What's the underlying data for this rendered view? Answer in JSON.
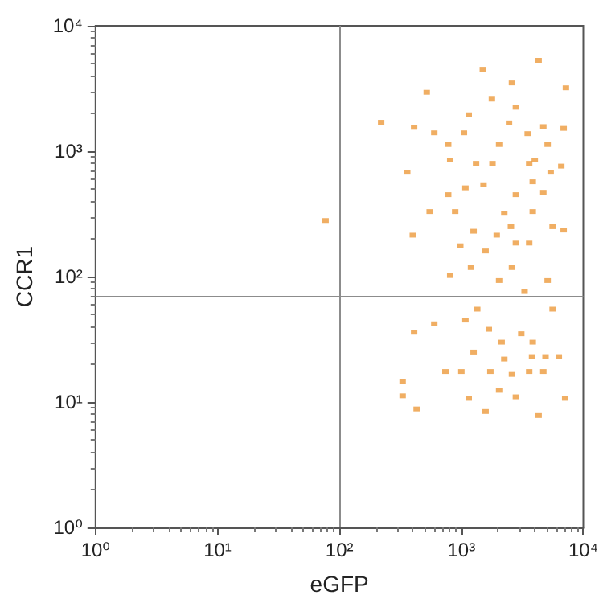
{
  "chart_data": {
    "type": "scatter",
    "xlabel": "eGFP",
    "ylabel": "CCR1",
    "log": "xy",
    "grid": false,
    "marker": "square",
    "xlim": [
      1,
      10000
    ],
    "ylim": [
      1,
      10000
    ],
    "xticks": [
      {
        "value": 1,
        "label": "10⁰"
      },
      {
        "value": 10,
        "label": "10¹"
      },
      {
        "value": 100,
        "label": "10²"
      },
      {
        "value": 1000,
        "label": "10³"
      },
      {
        "value": 10000,
        "label": "10⁴"
      }
    ],
    "yticks": [
      {
        "value": 1,
        "label": "10⁰"
      },
      {
        "value": 10,
        "label": "10¹"
      },
      {
        "value": 100,
        "label": "10²"
      },
      {
        "value": 1000,
        "label": "10³"
      },
      {
        "value": 10000,
        "label": "10⁴"
      }
    ],
    "ref_lines": [
      {
        "axis": "x",
        "value": 100,
        "color": "#8c8c8c"
      },
      {
        "axis": "y",
        "value": 70,
        "color": "#8c8c8c"
      }
    ],
    "series": [
      {
        "color": "#ec9a3c",
        "x": [
          77,
          220,
          360,
          600,
          1050,
          1320,
          1800,
          3600,
          2800,
          1260,
          2800,
          3600,
          2800,
          780,
          980,
          1950,
          6900,
          550,
          4700,
          4300,
          1500,
          2600,
          7200,
          520,
          4700,
          5100,
          780,
          5400,
          1520,
          2250,
          6900,
          410,
          2040,
          3300,
          5100,
          810,
          5600,
          1350,
          5600,
          600,
          1680,
          2140,
          3850,
          2250,
          3800,
          4900,
          6300,
          1000,
          1730,
          3600,
          4700,
          2800,
          1260,
          410,
          330,
          430,
          1580,
          4300,
          7100,
          740,
          1150,
          2600,
          2040,
          1080,
          3100,
          330,
          810,
          1150,
          1780,
          4000,
          2040,
          3850,
          890,
          1580,
          3850,
          6600,
          1080,
          2460,
          3500,
          2600,
          1200,
          400,
          2550
        ],
        "values": [
          280,
          1700,
          680,
          1400,
          1400,
          800,
          800,
          800,
          2240,
          230,
          185,
          185,
          450,
          450,
          176,
          214,
          235,
          330,
          470,
          5300,
          4500,
          3500,
          3200,
          2950,
          1570,
          1130,
          1130,
          680,
          540,
          320,
          1520,
          1550,
          93,
          76,
          93,
          102,
          250,
          55,
          55,
          42,
          38,
          30,
          30,
          22,
          23,
          23,
          23,
          17.5,
          17.5,
          17.5,
          17.5,
          11,
          25,
          36,
          14.5,
          8.8,
          8.4,
          7.8,
          10.7,
          17.5,
          10.7,
          16.6,
          12.4,
          45,
          35,
          11.2,
          850,
          1950,
          2600,
          850,
          1130,
          570,
          330,
          160,
          330,
          760,
          510,
          1680,
          1380,
          118,
          118,
          214,
          250
        ]
      }
    ]
  }
}
